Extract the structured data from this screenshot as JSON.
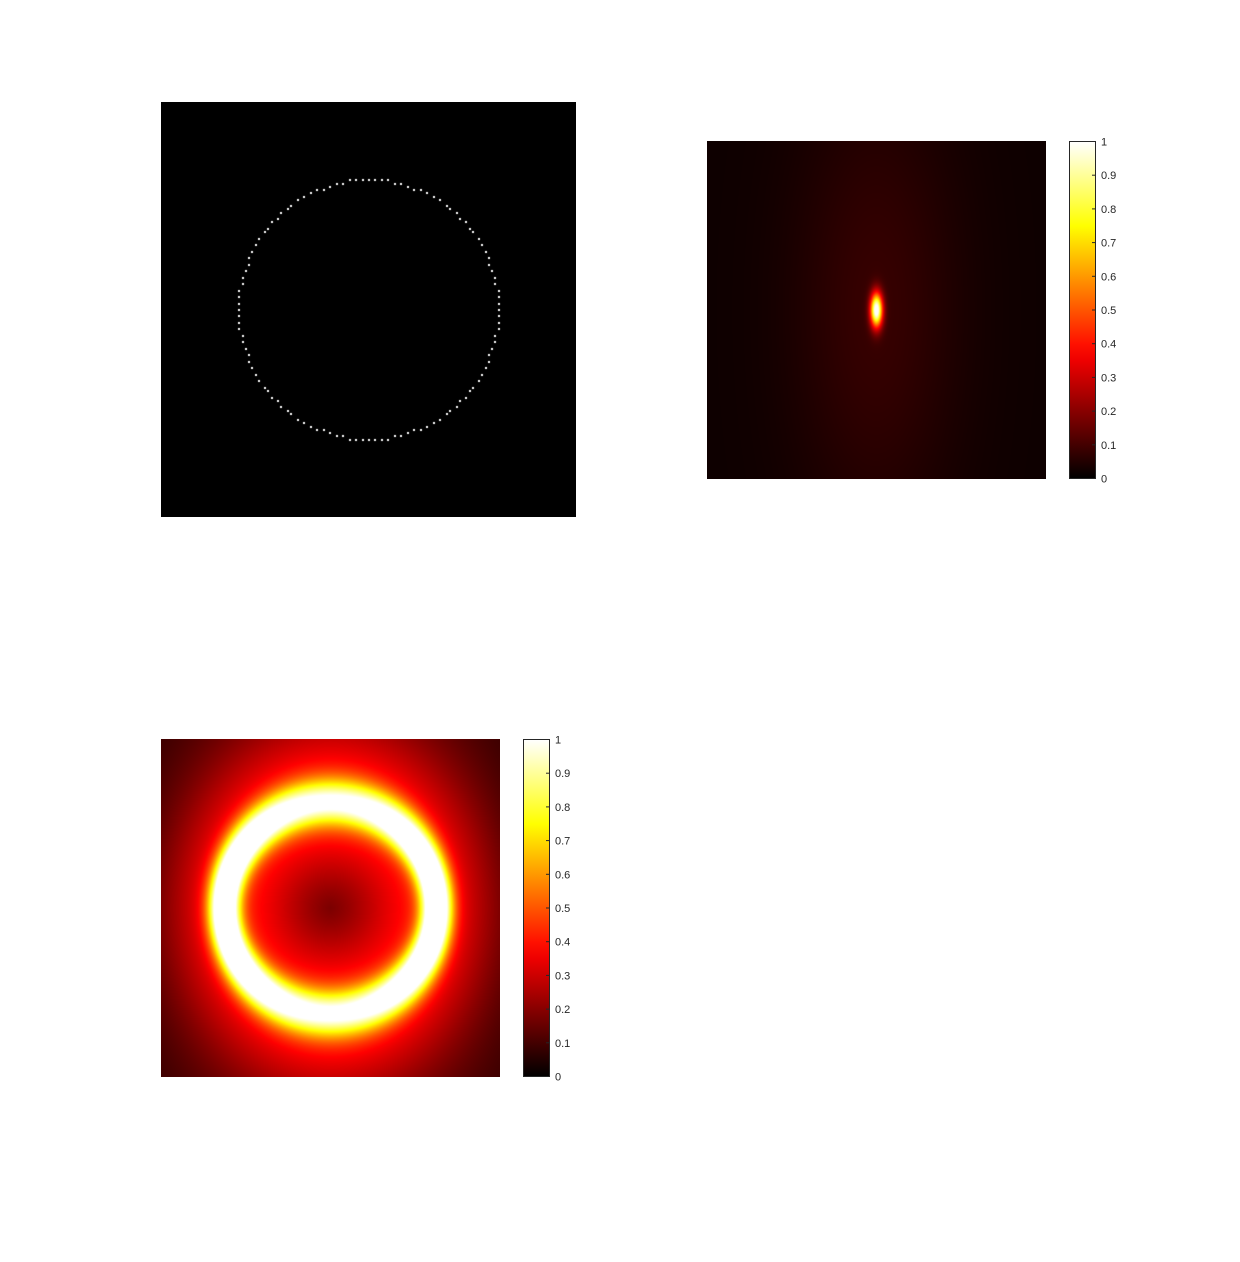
{
  "figure": {
    "background": "#ffffff"
  },
  "chart_data": [
    {
      "type": "heatmap",
      "title": "",
      "xlabel": "",
      "ylabel": "",
      "colormap": "gray",
      "axes_visible": false,
      "content": "sparse white points on a black field forming a circle",
      "grid_size": 128,
      "circle": {
        "center": [
          64,
          64
        ],
        "radius": 40,
        "n_points": 120
      },
      "value_range": [
        0,
        1
      ]
    },
    {
      "type": "heatmap",
      "title": "",
      "xlabel": "",
      "ylabel": "",
      "colormap": "hot",
      "axes_visible": false,
      "content": "elongated bright peak at the center with faint elliptical halo",
      "grid_size": 128,
      "peak": {
        "center": [
          64,
          64
        ],
        "sigma_x": 1.6,
        "sigma_y": 4.5,
        "value": 1.0
      },
      "halo": {
        "sigma_x": 22,
        "sigma_y": 60,
        "level": 0.06
      },
      "value_range": [
        0,
        1
      ],
      "colorbar": {
        "range": [
          0,
          1
        ],
        "ticks": [
          "0",
          "0.1",
          "0.2",
          "0.3",
          "0.4",
          "0.5",
          "0.6",
          "0.7",
          "0.8",
          "0.9",
          "1"
        ]
      }
    },
    {
      "type": "heatmap",
      "title": "",
      "xlabel": "",
      "ylabel": "",
      "colormap": "hot",
      "axes_visible": false,
      "content": "blurred bright ring, brightest at left and right sides",
      "grid_size": 128,
      "ring": {
        "center": [
          64,
          64
        ],
        "radius": 40,
        "peak_side": 1.0,
        "peak_top_bottom": 0.62,
        "background": 0.12
      },
      "value_range": [
        0,
        1
      ],
      "colorbar": {
        "range": [
          0,
          1
        ],
        "ticks": [
          "0",
          "0.1",
          "0.2",
          "0.3",
          "0.4",
          "0.5",
          "0.6",
          "0.7",
          "0.8",
          "0.9",
          "1"
        ]
      }
    }
  ]
}
